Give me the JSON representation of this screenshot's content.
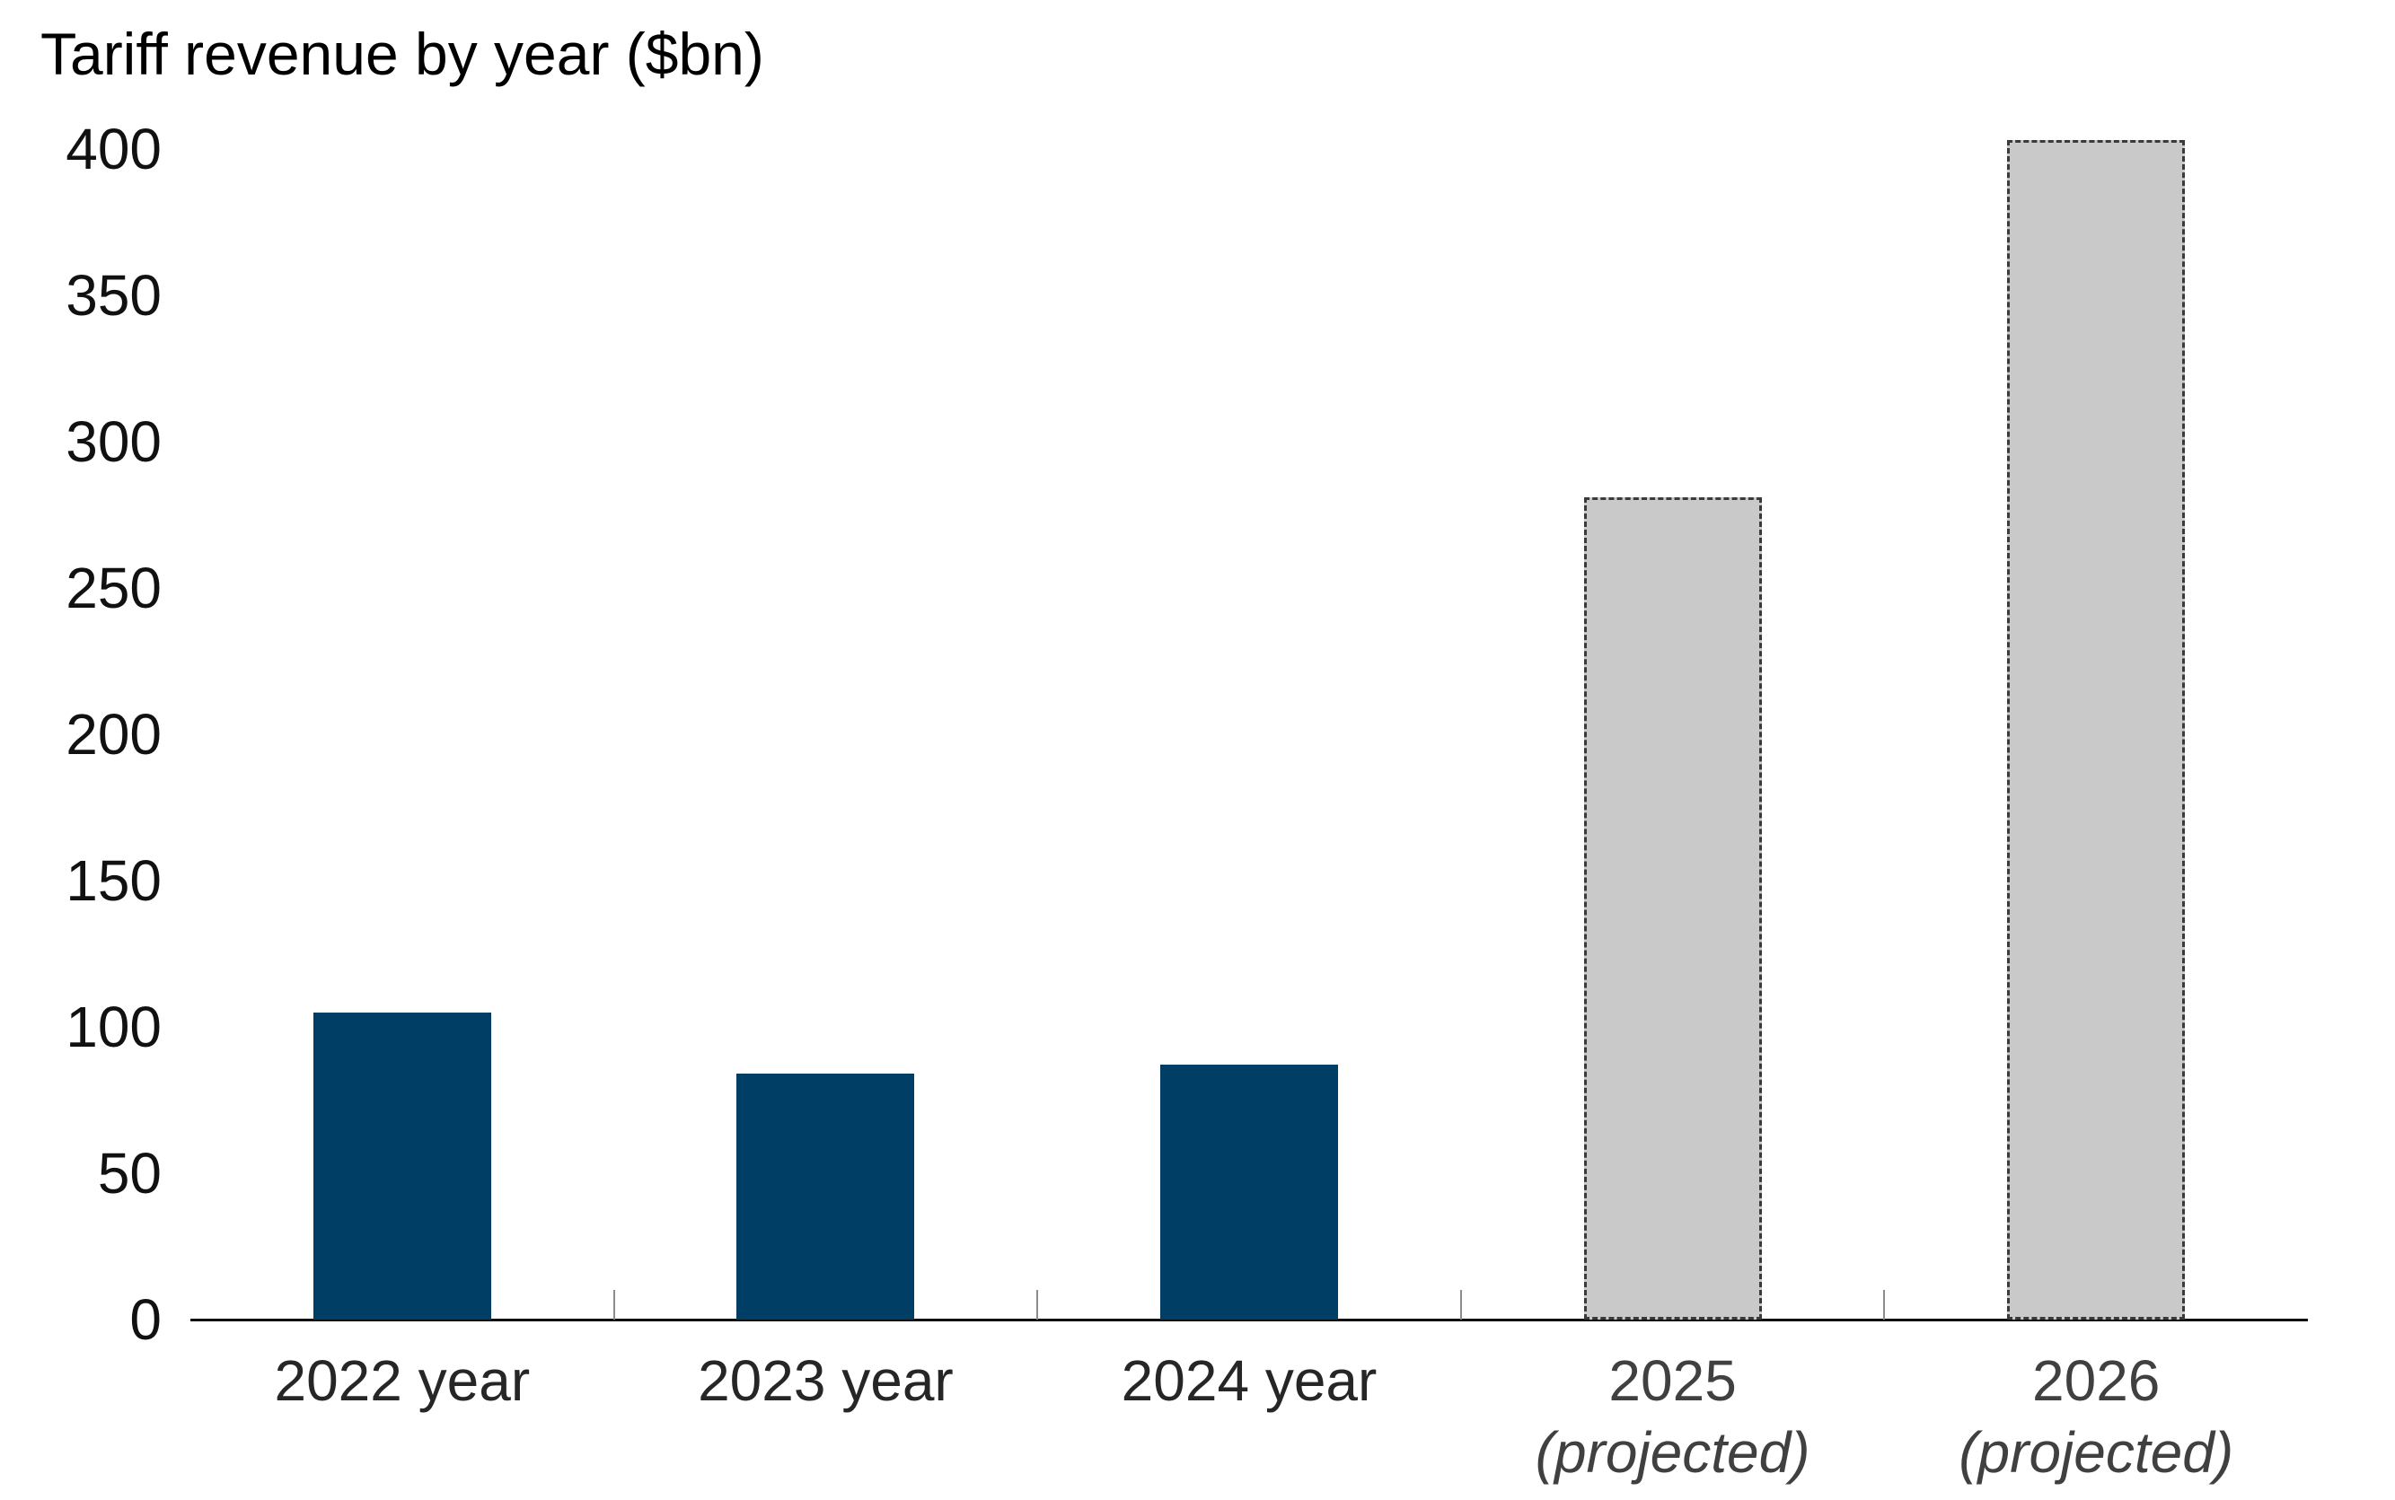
{
  "chart_data": {
    "type": "bar",
    "title": "Tariff revenue by year ($bn)",
    "categories": [
      "2022 year",
      "2023 year",
      "2024 year",
      "2025 (projected)",
      "2026 (projected)"
    ],
    "category_label_lines": [
      [
        "2022 year"
      ],
      [
        "2023 year"
      ],
      [
        "2024 year"
      ],
      [
        "2025",
        "(projected)"
      ],
      [
        "2026",
        "(projected)"
      ]
    ],
    "series": [
      {
        "name": "Tariff revenue ($bn)",
        "values": [
          105,
          84,
          87,
          281,
          403
        ]
      }
    ],
    "values": [
      105,
      84,
      87,
      281,
      403
    ],
    "projected": [
      false,
      false,
      false,
      true,
      true
    ],
    "xlabel": "",
    "ylabel": "",
    "ylim": [
      0,
      400
    ],
    "yticks": [
      0,
      50,
      100,
      150,
      200,
      250,
      300,
      350,
      400
    ],
    "grid": false,
    "legend": false,
    "colors": {
      "actual_bar_fill": "#003e66",
      "projected_bar_fill": "#c9c9c9",
      "projected_bar_border": "#3a3a3a",
      "axis_line": "#0d0d0d",
      "boundary_tick": "#8c8c8c",
      "y_label_text": "#111111",
      "x_label_text": "#262626",
      "projected_label_text": "#404040",
      "title_text": "#000000"
    }
  }
}
